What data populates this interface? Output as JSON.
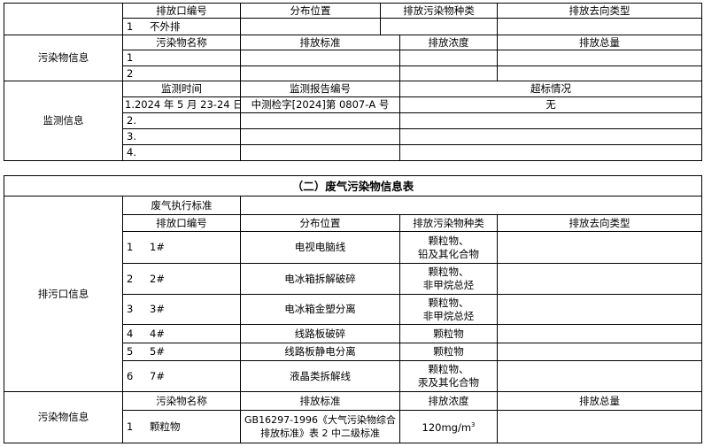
{
  "table1": {
    "outlet_header": [
      "排放口编号",
      "分布位置",
      "排放污染物种类",
      "排放去向类型"
    ],
    "outlet_rows": [
      {
        "no": "1",
        "id": "不外排",
        "location": "",
        "pollutant": "",
        "destination": ""
      }
    ],
    "pollutant_label": "污染物信息",
    "pollutant_header": [
      "污染物名称",
      "排放标准",
      "排放浓度",
      "排放总量"
    ],
    "pollutant_rows": [
      "1",
      "2"
    ],
    "monitor_label": "监测信息",
    "monitor_header": [
      "监测时间",
      "监测报告编号",
      "超标情况"
    ],
    "monitor_rows": [
      {
        "time": "1.2024 年 5 月 23-24 日",
        "report": "中测检字[2024]第 0807-A 号",
        "exceed": "无"
      },
      {
        "time": "2.",
        "report": "",
        "exceed": ""
      },
      {
        "time": "3.",
        "report": "",
        "exceed": ""
      },
      {
        "time": "4.",
        "report": "",
        "exceed": ""
      }
    ]
  },
  "table2": {
    "title": "（二）废气污染物信息表",
    "outlet_label": "排污口信息",
    "standard_label": "废气执行标准",
    "standard_value": "",
    "outlet_header": [
      "排放口编号",
      "分布位置",
      "排放污染物种类",
      "排放去向类型"
    ],
    "outlet_rows": [
      {
        "no": "1",
        "id": "1#",
        "location": "电视电脑线",
        "pollutant": [
          "颗粒物、",
          "铅及其化合物"
        ]
      },
      {
        "no": "2",
        "id": "2#",
        "location": "电冰箱拆解破碎",
        "pollutant": [
          "颗粒物、",
          "非甲烷总烃"
        ]
      },
      {
        "no": "3",
        "id": "3#",
        "location": "电冰箱金塑分离",
        "pollutant": [
          "颗粒物、",
          "非甲烷总烃"
        ]
      },
      {
        "no": "4",
        "id": "4#",
        "location": "线路板破碎",
        "pollutant": [
          "颗粒物"
        ]
      },
      {
        "no": "5",
        "id": "5#",
        "location": "线路板静电分离",
        "pollutant": [
          "颗粒物"
        ]
      },
      {
        "no": "6",
        "id": "7#",
        "location": "液晶类拆解线",
        "pollutant": [
          "颗粒物、",
          "汞及其化合物"
        ]
      }
    ],
    "pollutant_label": "污染物信息",
    "pollutant_header": [
      "污染物名称",
      "排放标准",
      "排放浓度",
      "排放总量"
    ],
    "pollutant_rows": [
      {
        "no": "1",
        "name": "颗粒物",
        "standard": [
          "GB16297-1996《大气污染物综合",
          "排放标准》表 2 中二级标准"
        ],
        "concentration": "120mg/m",
        "concentration_sup": "3",
        "total": ""
      }
    ]
  }
}
